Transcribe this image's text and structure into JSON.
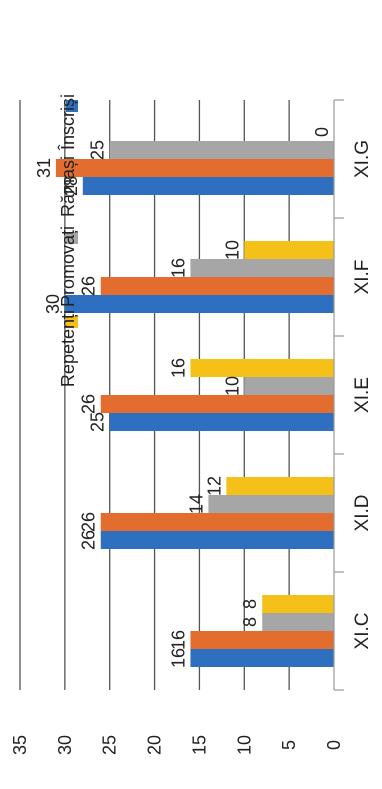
{
  "chart_data": {
    "type": "bar",
    "orientation": "horizontal-rotated",
    "categories": [
      "XI.C",
      "XI.D",
      "XI.E",
      "XI.F",
      "XI.G"
    ],
    "series": [
      {
        "name": "Înscriși",
        "color": "#2e6fc0",
        "values": [
          16,
          26,
          25,
          30,
          28
        ]
      },
      {
        "name": "Rămași",
        "color": "#e36c2f",
        "values": [
          16,
          26,
          26,
          26,
          31
        ]
      },
      {
        "name": "Promovați",
        "color": "#a6a6a6",
        "values": [
          8,
          14,
          10,
          16,
          25
        ]
      },
      {
        "name": "Repetenți",
        "color": "#f5c118",
        "values": [
          8,
          12,
          16,
          10,
          0
        ]
      }
    ],
    "data_labels": [
      "16",
      "16",
      "8",
      "8",
      "26",
      "26",
      "14",
      "12",
      "25",
      "26",
      "10",
      "16",
      "30",
      "26",
      "16",
      "10",
      "28",
      "31",
      "25",
      "0"
    ],
    "ylim": [
      0,
      35
    ],
    "yticks": [
      "0",
      "5",
      "10",
      "15",
      "20",
      "25",
      "30",
      "35"
    ],
    "grid": true,
    "legend_position": "top"
  }
}
